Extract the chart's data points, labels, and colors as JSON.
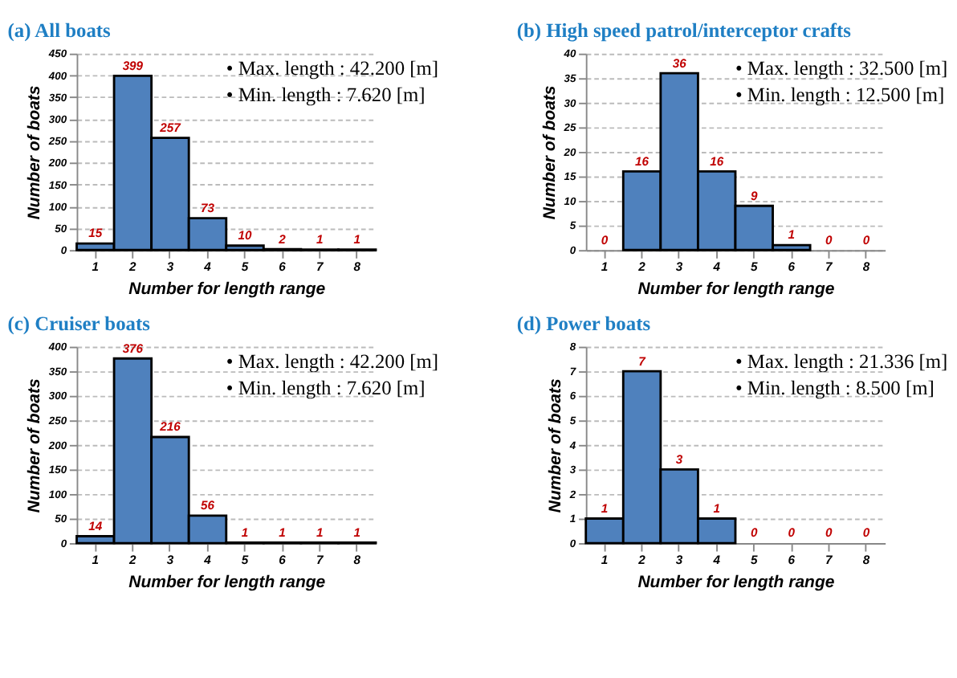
{
  "chart_data": [
    {
      "type": "bar",
      "title": "(a) All boats",
      "xlabel": "Number for length range",
      "ylabel": "Number of boats",
      "categories": [
        "1",
        "2",
        "3",
        "4",
        "5",
        "6",
        "7",
        "8"
      ],
      "values": [
        15,
        399,
        257,
        73,
        10,
        2,
        1,
        1
      ],
      "color": "#4f81bd",
      "ylim": [
        0,
        450
      ],
      "yticks": [
        0,
        50,
        100,
        150,
        200,
        250,
        300,
        350,
        400,
        450
      ],
      "grid": "y",
      "data_labels": true,
      "annotations": [
        "• Max. length : 42.200 [m]",
        "• Min. length : 7.620 [m]"
      ]
    },
    {
      "type": "bar",
      "title": "(b) High speed patrol/interceptor crafts",
      "xlabel": "Number for length range",
      "ylabel": "Number of boats",
      "categories": [
        "1",
        "2",
        "3",
        "4",
        "5",
        "6",
        "7",
        "8"
      ],
      "values": [
        0,
        16,
        36,
        16,
        9,
        1,
        0,
        0
      ],
      "color": "#4f81bd",
      "ylim": [
        0,
        40
      ],
      "yticks": [
        0,
        5,
        10,
        15,
        20,
        25,
        30,
        35,
        40
      ],
      "grid": "y",
      "data_labels": true,
      "annotations": [
        "• Max. length : 32.500 [m]",
        "• Min. length : 12.500 [m]"
      ]
    },
    {
      "type": "bar",
      "title": "(c) Cruiser boats",
      "xlabel": "Number for length range",
      "ylabel": "Number of boats",
      "categories": [
        "1",
        "2",
        "3",
        "4",
        "5",
        "6",
        "7",
        "8"
      ],
      "values": [
        14,
        376,
        216,
        56,
        1,
        1,
        1,
        1
      ],
      "color": "#4f81bd",
      "ylim": [
        0,
        400
      ],
      "yticks": [
        0,
        50,
        100,
        150,
        200,
        250,
        300,
        350,
        400
      ],
      "grid": "y",
      "data_labels": true,
      "annotations": [
        "• Max. length : 42.200 [m]",
        "• Min. length : 7.620 [m]"
      ]
    },
    {
      "type": "bar",
      "title": "(d) Power boats",
      "xlabel": "Number for length range",
      "ylabel": "Number of boats",
      "categories": [
        "1",
        "2",
        "3",
        "4",
        "5",
        "6",
        "7",
        "8"
      ],
      "values": [
        1,
        7,
        3,
        1,
        0,
        0,
        0,
        0
      ],
      "color": "#4f81bd",
      "ylim": [
        0,
        8
      ],
      "yticks": [
        0,
        1,
        2,
        3,
        4,
        5,
        6,
        7,
        8
      ],
      "grid": "y",
      "data_labels": true,
      "annotations": [
        "• Max. length : 21.336 [m]",
        "• Min. length : 8.500 [m]"
      ]
    }
  ]
}
